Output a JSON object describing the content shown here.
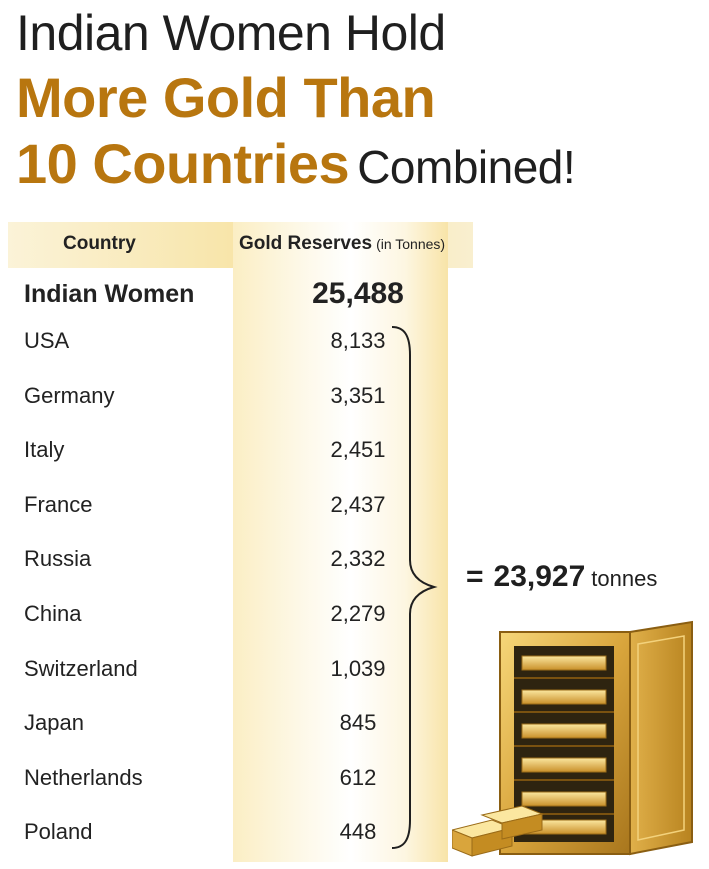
{
  "title": {
    "line1": "Indian Women Hold",
    "line2": "More Gold Than",
    "line3": "10 Countries",
    "line3_suffix": "Combined!"
  },
  "chart_data": {
    "type": "table",
    "columns": {
      "country": "Country",
      "gold": "Gold Reserves",
      "unit": "(in Tonnes)"
    },
    "rows": [
      {
        "label": "Indian Women",
        "value": "25,488",
        "highlight": true
      },
      {
        "label": "USA",
        "value": "8,133"
      },
      {
        "label": "Germany",
        "value": "3,351"
      },
      {
        "label": "Italy",
        "value": "2,451"
      },
      {
        "label": "France",
        "value": "2,437"
      },
      {
        "label": "Russia",
        "value": "2,332"
      },
      {
        "label": "China",
        "value": "2,279"
      },
      {
        "label": "Switzerland",
        "value": "1,039"
      },
      {
        "label": "Japan",
        "value": "845"
      },
      {
        "label": "Netherlands",
        "value": "612"
      },
      {
        "label": "Poland",
        "value": "448"
      }
    ],
    "total": {
      "prefix": "=",
      "value": "23,927",
      "unit": "tonnes"
    }
  },
  "colors": {
    "gold_title": "#b8760f",
    "text": "#1f1f1f",
    "column_gold": "#f7e3a3"
  },
  "icons": [
    "gold-safe-icon",
    "gold-bars-icon"
  ]
}
